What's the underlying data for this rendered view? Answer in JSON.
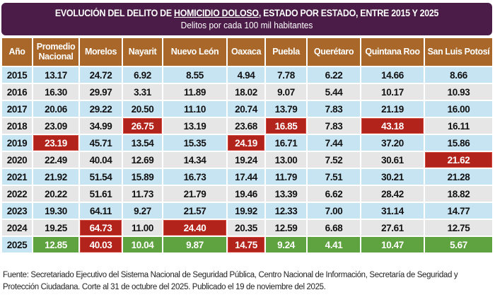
{
  "title": {
    "prefix": "EVOLUCIÓN DEL DELITO DE ",
    "underlined": "HOMICIDIO DOLOSO",
    "suffix": ", ESTADO POR ESTADO, ENTRE 2015 Y 2025",
    "subtitle": "Delitos por cada 100 mil habitantes"
  },
  "colors": {
    "title_bg": "#4a1c47",
    "header_bg": "#a9682a",
    "row_blue": "#c7e4f3",
    "row_gray": "#e6e6e6",
    "highlight_red": "#b2241b",
    "highlight_green": "#5fa240"
  },
  "columns": [
    "Año",
    "Promedio Nacional",
    "Morelos",
    "Nayarit",
    "Nuevo León",
    "Oaxaca",
    "Puebla",
    "Querétaro",
    "Quintana Roo",
    "San Luis Potosí"
  ],
  "rows": [
    {
      "year": "2015",
      "values": [
        "13.17",
        "24.72",
        "6.92",
        "8.55",
        "4.94",
        "7.78",
        "6.22",
        "14.66",
        "8.66"
      ],
      "highlight": []
    },
    {
      "year": "2016",
      "values": [
        "16.30",
        "29.97",
        "3.31",
        "11.89",
        "18.02",
        "9.07",
        "5.44",
        "10.17",
        "10.93"
      ],
      "highlight": []
    },
    {
      "year": "2017",
      "values": [
        "20.06",
        "29.22",
        "20.50",
        "11.10",
        "20.74",
        "13.79",
        "7.83",
        "21.19",
        "16.00"
      ],
      "highlight": []
    },
    {
      "year": "2018",
      "values": [
        "23.09",
        "34.99",
        "26.75",
        "13.19",
        "23.68",
        "16.85",
        "7.83",
        "43.18",
        "16.11"
      ],
      "highlight": [
        "",
        "",
        "red",
        "",
        "",
        "red",
        "",
        "red",
        ""
      ]
    },
    {
      "year": "2019",
      "values": [
        "23.19",
        "45.71",
        "13.54",
        "15.35",
        "24.19",
        "16.71",
        "7.44",
        "37.20",
        "15.86"
      ],
      "highlight": [
        "red",
        "",
        "",
        "",
        "red",
        "",
        "",
        "",
        ""
      ]
    },
    {
      "year": "2020",
      "values": [
        "22.49",
        "40.04",
        "12.69",
        "14.34",
        "19.24",
        "13.00",
        "7.52",
        "30.61",
        "21.62"
      ],
      "highlight": [
        "",
        "",
        "",
        "",
        "",
        "",
        "",
        "",
        "red"
      ]
    },
    {
      "year": "2021",
      "values": [
        "21.92",
        "51.54",
        "15.89",
        "16.73",
        "17.44",
        "11.79",
        "7.51",
        "30.21",
        "21.28"
      ],
      "highlight": []
    },
    {
      "year": "2022",
      "values": [
        "20.22",
        "51.61",
        "11.73",
        "21.79",
        "19.46",
        "13.39",
        "6.62",
        "28.42",
        "18.82"
      ],
      "highlight": []
    },
    {
      "year": "2023",
      "values": [
        "19.30",
        "64.11",
        "9.27",
        "21.57",
        "19.92",
        "12.33",
        "7.00",
        "31.14",
        "14.77"
      ],
      "highlight": []
    },
    {
      "year": "2024",
      "values": [
        "19.25",
        "64.73",
        "11.00",
        "24.40",
        "20.35",
        "12.59",
        "6.68",
        "27.61",
        "12.75"
      ],
      "highlight": [
        "",
        "red",
        "",
        "red",
        "",
        "",
        "",
        "",
        ""
      ]
    },
    {
      "year": "2025",
      "values": [
        "12.85",
        "40.03",
        "10.04",
        "9.87",
        "14.75",
        "9.24",
        "4.41",
        "10.47",
        "5.67"
      ],
      "highlight": [
        "green",
        "red",
        "green",
        "green",
        "red",
        "green",
        "green",
        "green",
        "green"
      ]
    }
  ],
  "footer": "Fuente: Secretariado Ejecutivo del Sistema Nacional de Seguridad Pública, Centro Nacional de Información, Secretaría de Seguridad y Protección Ciudadana. Corte al 31 de octubre del 2025. Publicado el 19 de noviembre del 2025."
}
